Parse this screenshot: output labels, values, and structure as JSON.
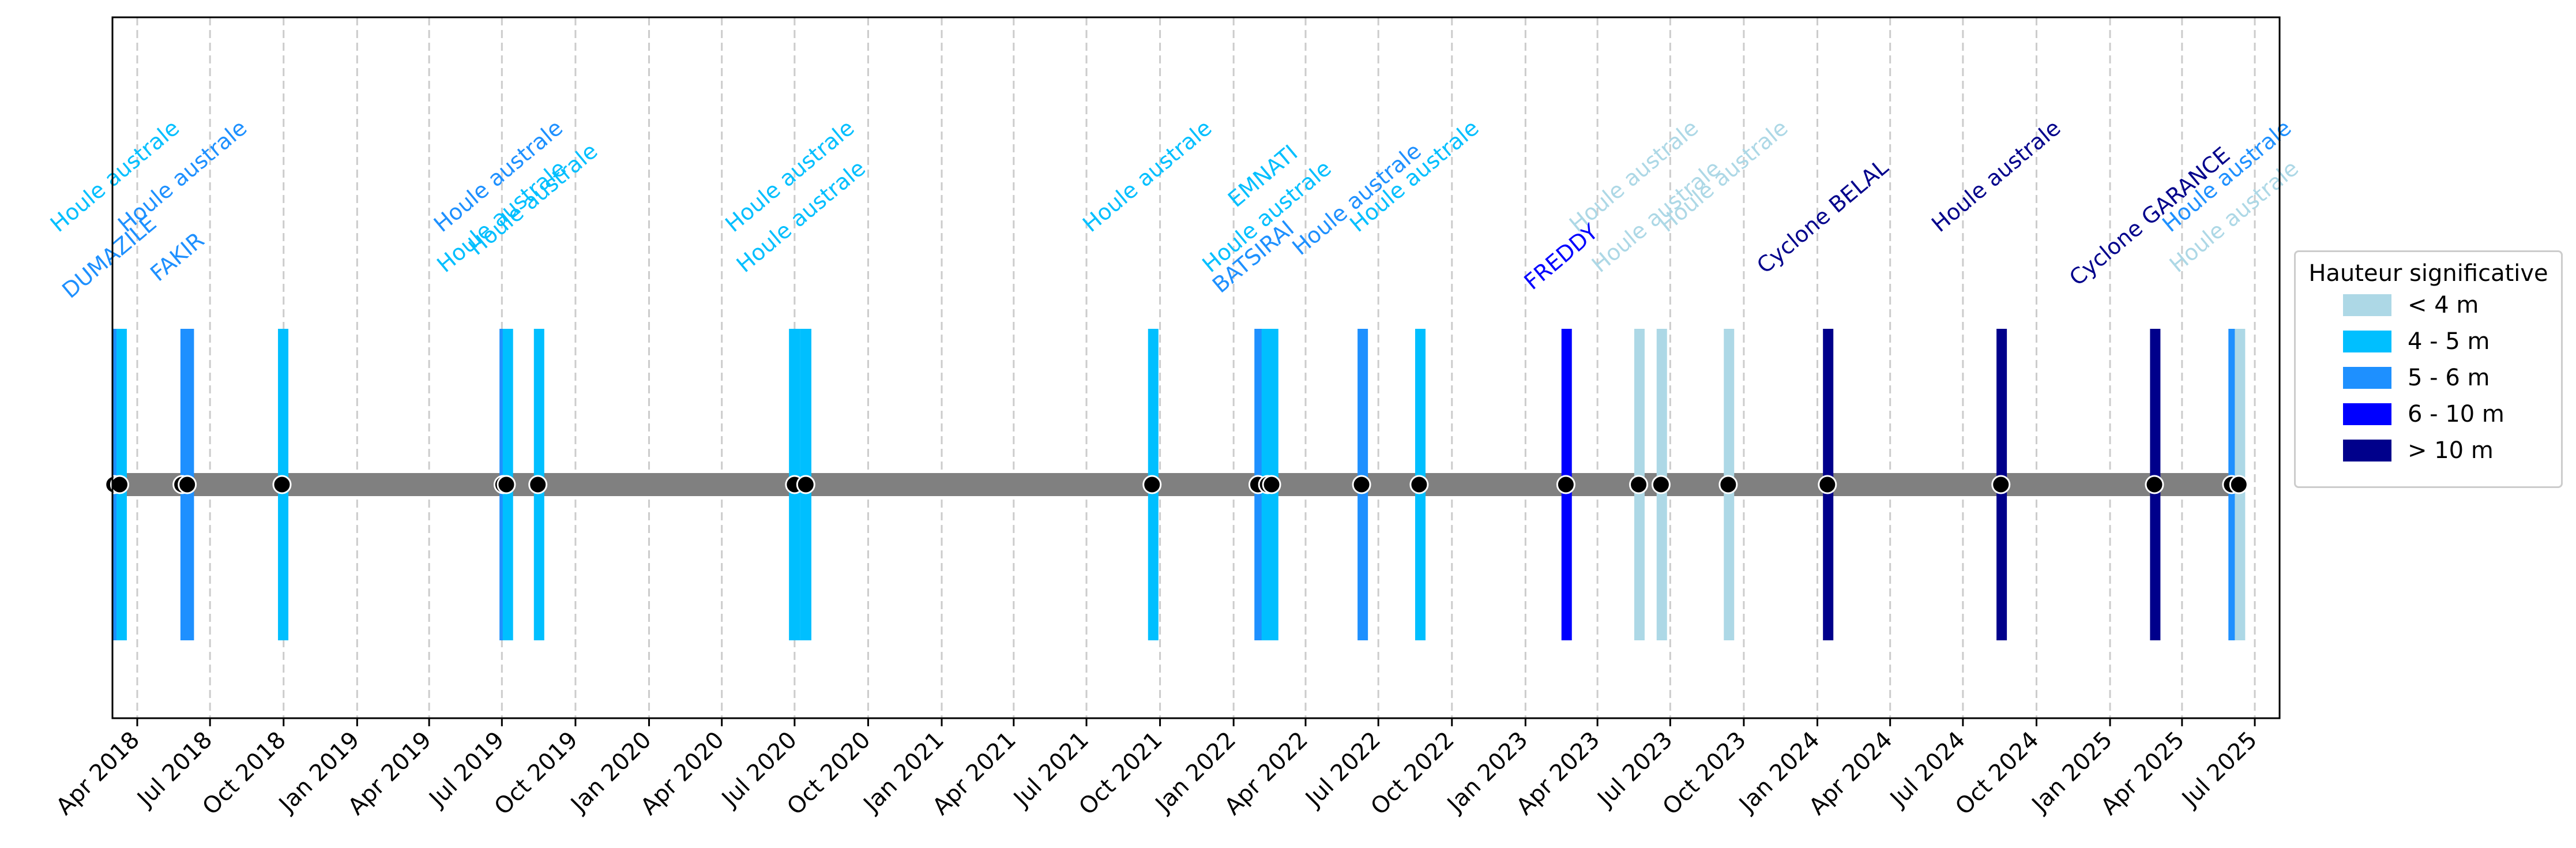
{
  "chart_data": {
    "type": "timeline",
    "x_axis": {
      "min": "2018-03-01",
      "max": "2025-08-01",
      "tick_labels": [
        "Apr 2018",
        "Jul 2018",
        "Oct 2018",
        "Jan 2019",
        "Apr 2019",
        "Jul 2019",
        "Oct 2019",
        "Jan 2020",
        "Apr 2020",
        "Jul 2020",
        "Oct 2020",
        "Jan 2021",
        "Apr 2021",
        "Jul 2021",
        "Oct 2021",
        "Jan 2022",
        "Apr 2022",
        "Jul 2022",
        "Oct 2022",
        "Jan 2023",
        "Apr 2023",
        "Jul 2023",
        "Oct 2023",
        "Jan 2024",
        "Apr 2024",
        "Jul 2024",
        "Oct 2024",
        "Jan 2025",
        "Apr 2025",
        "Jul 2025"
      ],
      "tick_dates": [
        "2018-04-01",
        "2018-07-01",
        "2018-10-01",
        "2019-01-01",
        "2019-04-01",
        "2019-07-01",
        "2019-10-01",
        "2020-01-01",
        "2020-04-01",
        "2020-07-01",
        "2020-10-01",
        "2021-01-01",
        "2021-04-01",
        "2021-07-01",
        "2021-10-01",
        "2022-01-01",
        "2022-04-01",
        "2022-07-01",
        "2022-10-01",
        "2023-01-01",
        "2023-04-01",
        "2023-07-01",
        "2023-10-01",
        "2024-01-01",
        "2024-04-01",
        "2024-07-01",
        "2024-10-01",
        "2025-01-01",
        "2025-04-01",
        "2025-07-01"
      ]
    },
    "vertical_grid": true,
    "legend": {
      "title": "Hauteur significative",
      "placement": "right",
      "items": [
        {
          "label": "< 4 m",
          "color": "#add8e6"
        },
        {
          "label": "4 - 5 m",
          "color": "#00bfff"
        },
        {
          "label": "5 - 6 m",
          "color": "#1e90ff"
        },
        {
          "label": "6 - 10 m",
          "color": "#0000ff"
        },
        {
          "label": "> 10 m",
          "color": "#00008b"
        }
      ]
    },
    "events": [
      {
        "start": "2018-03-01",
        "end": "2018-03-05",
        "color": "#1e90ff",
        "label": "DUMAZILE",
        "label_row": "low"
      },
      {
        "start": "2018-03-06",
        "end": "2018-03-14",
        "color": "#00bfff",
        "label": "Houle australe",
        "label_row": "high"
      },
      {
        "start": "2018-05-25",
        "end": "2018-05-29",
        "color": "#1e90ff",
        "label": "FAKIR",
        "label_row": "low"
      },
      {
        "start": "2018-05-29",
        "end": "2018-06-07",
        "color": "#1e90ff",
        "label": "Houle australe",
        "label_row": "high"
      },
      {
        "start": "2018-09-24",
        "end": "2018-10-04",
        "color": "#00bfff",
        "label": "",
        "label_row": "high"
      },
      {
        "start": "2019-06-28",
        "end": "2019-07-07",
        "color": "#1e90ff",
        "label": "Houle australe",
        "label_row": "high"
      },
      {
        "start": "2019-07-02",
        "end": "2019-07-11",
        "color": "#00bfff",
        "label": "Houle australe",
        "label_row": "mid"
      },
      {
        "start": "2019-08-10",
        "end": "2019-08-20",
        "color": "#00bfff",
        "label": "Houle australe",
        "label_row": "mid2"
      },
      {
        "start": "2020-06-24",
        "end": "2020-07-08",
        "color": "#00bfff",
        "label": "Houle australe",
        "label_row": "high"
      },
      {
        "start": "2020-07-08",
        "end": "2020-07-22",
        "color": "#00bfff",
        "label": "Houle australe",
        "label_row": "mid"
      },
      {
        "start": "2021-09-16",
        "end": "2021-09-26",
        "color": "#00bfff",
        "label": "Houle australe",
        "label_row": "high"
      },
      {
        "start": "2022-01-27",
        "end": "2022-02-05",
        "color": "#1e90ff",
        "label": "BATSIRAI",
        "label_row": "low"
      },
      {
        "start": "2022-02-05",
        "end": "2022-02-20",
        "color": "#00bfff",
        "label": "EMNATI",
        "label_row": "high"
      },
      {
        "start": "2022-02-13",
        "end": "2022-02-22",
        "color": "#00bfff",
        "label": "Houle australe",
        "label_row": "mid"
      },
      {
        "start": "2022-06-05",
        "end": "2022-06-15",
        "color": "#1e90ff",
        "label": "Houle australe",
        "label_row": "mid2"
      },
      {
        "start": "2022-08-16",
        "end": "2022-08-26",
        "color": "#00bfff",
        "label": "Houle australe",
        "label_row": "high"
      },
      {
        "start": "2023-02-15",
        "end": "2023-02-26",
        "color": "#0000ff",
        "label": "FREDDY",
        "label_row": "low"
      },
      {
        "start": "2023-05-17",
        "end": "2023-05-28",
        "color": "#add8e6",
        "label": "Houle australe",
        "label_row": "high"
      },
      {
        "start": "2023-06-14",
        "end": "2023-06-25",
        "color": "#add8e6",
        "label": "Houle australe",
        "label_row": "mid"
      },
      {
        "start": "2023-09-06",
        "end": "2023-09-17",
        "color": "#add8e6",
        "label": "Houle australe",
        "label_row": "high"
      },
      {
        "start": "2024-01-08",
        "end": "2024-01-19",
        "color": "#00008b",
        "label": "Cyclone BELAL",
        "label_row": "mid"
      },
      {
        "start": "2024-08-12",
        "end": "2024-08-23",
        "color": "#00008b",
        "label": "Houle australe",
        "label_row": "high"
      },
      {
        "start": "2025-02-20",
        "end": "2025-03-03",
        "color": "#00008b",
        "label": "Cyclone GARANCE",
        "label_row": "mid"
      },
      {
        "start": "2025-05-29",
        "end": "2025-06-06",
        "color": "#1e90ff",
        "label": "Houle australe",
        "label_row": "high"
      },
      {
        "start": "2025-06-06",
        "end": "2025-06-16",
        "color": "#add8e6",
        "label": "Houle australe",
        "label_row": "mid"
      }
    ]
  }
}
